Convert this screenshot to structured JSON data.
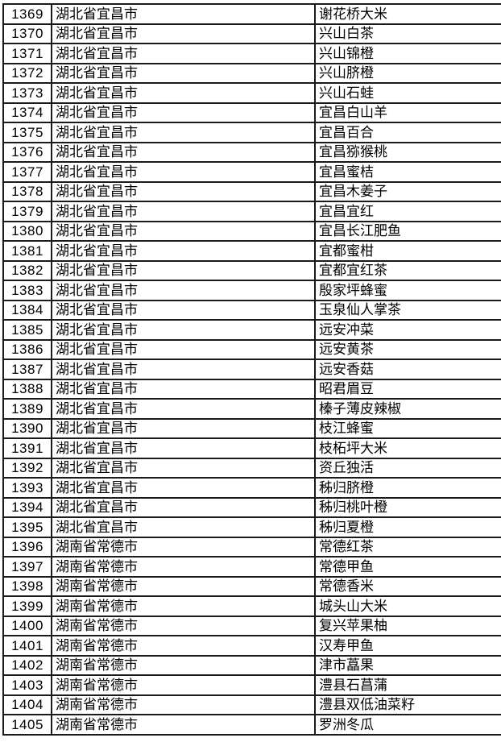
{
  "colors": {
    "background": "#ffffff",
    "border": "#1a1a1a",
    "text": "#000000"
  },
  "table": {
    "rows": [
      [
        "1369",
        "湖北省宜昌市",
        "谢花桥大米"
      ],
      [
        "1370",
        "湖北省宜昌市",
        "兴山白茶"
      ],
      [
        "1371",
        "湖北省宜昌市",
        "兴山锦橙"
      ],
      [
        "1372",
        "湖北省宜昌市",
        "兴山脐橙"
      ],
      [
        "1373",
        "湖北省宜昌市",
        "兴山石蛙"
      ],
      [
        "1374",
        "湖北省宜昌市",
        "宜昌白山羊"
      ],
      [
        "1375",
        "湖北省宜昌市",
        "宜昌百合"
      ],
      [
        "1376",
        "湖北省宜昌市",
        "宜昌猕猴桃"
      ],
      [
        "1377",
        "湖北省宜昌市",
        "宜昌蜜桔"
      ],
      [
        "1378",
        "湖北省宜昌市",
        "宜昌木姜子"
      ],
      [
        "1379",
        "湖北省宜昌市",
        "宜昌宜红"
      ],
      [
        "1380",
        "湖北省宜昌市",
        "宜昌长江肥鱼"
      ],
      [
        "1381",
        "湖北省宜昌市",
        "宜都蜜柑"
      ],
      [
        "1382",
        "湖北省宜昌市",
        "宜都宜红茶"
      ],
      [
        "1383",
        "湖北省宜昌市",
        "殷家坪蜂蜜"
      ],
      [
        "1384",
        "湖北省宜昌市",
        "玉泉仙人掌茶"
      ],
      [
        "1385",
        "湖北省宜昌市",
        "远安冲菜"
      ],
      [
        "1386",
        "湖北省宜昌市",
        "远安黄茶"
      ],
      [
        "1387",
        "湖北省宜昌市",
        "远安香菇"
      ],
      [
        "1388",
        "湖北省宜昌市",
        "昭君眉豆"
      ],
      [
        "1389",
        "湖北省宜昌市",
        "榛子薄皮辣椒"
      ],
      [
        "1390",
        "湖北省宜昌市",
        "枝江蜂蜜"
      ],
      [
        "1391",
        "湖北省宜昌市",
        "枝柘坪大米"
      ],
      [
        "1392",
        "湖北省宜昌市",
        "资丘独活"
      ],
      [
        "1393",
        "湖北省宜昌市",
        "秭归脐橙"
      ],
      [
        "1394",
        "湖北省宜昌市",
        "秭归桃叶橙"
      ],
      [
        "1395",
        "湖北省宜昌市",
        "秭归夏橙"
      ],
      [
        "1396",
        "湖南省常德市",
        "常德红茶"
      ],
      [
        "1397",
        "湖南省常德市",
        "常德甲鱼"
      ],
      [
        "1398",
        "湖南省常德市",
        "常德香米"
      ],
      [
        "1399",
        "湖南省常德市",
        "城头山大米"
      ],
      [
        "1400",
        "湖南省常德市",
        "复兴苹果柚"
      ],
      [
        "1401",
        "湖南省常德市",
        "汉寿甲鱼"
      ],
      [
        "1402",
        "湖南省常德市",
        "津市藠果"
      ],
      [
        "1403",
        "湖南省常德市",
        "澧县石菖蒲"
      ],
      [
        "1404",
        "湖南省常德市",
        "澧县双低油菜籽"
      ],
      [
        "1405",
        "湖南省常德市",
        "罗洲冬瓜"
      ]
    ]
  }
}
